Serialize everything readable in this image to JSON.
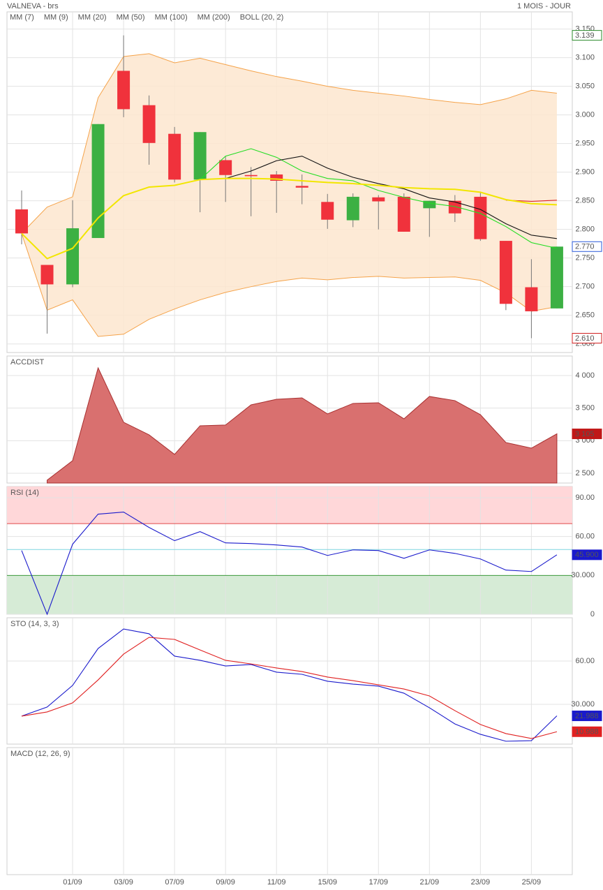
{
  "header": {
    "title": "VALNEVA - brs",
    "period": "1 MOIS - JOUR"
  },
  "chart_data": [
    {
      "type": "candlestick",
      "categories": [
        null,
        null,
        "01/09",
        null,
        "03/09",
        null,
        "07/09",
        null,
        "09/09",
        null,
        "11/09",
        null,
        "15/09",
        null,
        "17/09",
        null,
        "21/09",
        null,
        "23/09",
        null,
        "25/09",
        null
      ],
      "open": [
        2.835,
        2.738,
        2.704,
        2.785,
        3.077,
        3.017,
        2.967,
        2.887,
        2.921,
        2.895,
        2.896,
        2.876,
        2.848,
        2.816,
        2.856,
        2.857,
        2.837,
        2.85,
        2.857,
        2.78,
        2.699,
        2.662
      ],
      "high": [
        2.868,
        2.738,
        2.851,
        2.984,
        3.139,
        3.034,
        2.979,
        2.97,
        2.927,
        2.909,
        2.902,
        2.896,
        2.862,
        2.863,
        2.86,
        2.863,
        2.85,
        2.86,
        2.866,
        2.78,
        2.748,
        2.77
      ],
      "low": [
        2.774,
        2.618,
        2.699,
        2.785,
        2.996,
        2.913,
        2.882,
        2.83,
        2.848,
        2.823,
        2.829,
        2.844,
        2.801,
        2.804,
        2.8,
        2.796,
        2.787,
        2.813,
        2.78,
        2.659,
        2.61,
        2.662
      ],
      "close": [
        2.793,
        2.704,
        2.802,
        2.984,
        3.01,
        2.951,
        2.887,
        2.97,
        2.895,
        2.893,
        2.885,
        2.873,
        2.817,
        2.857,
        2.849,
        2.796,
        2.85,
        2.828,
        2.783,
        2.67,
        2.657,
        2.77
      ],
      "up_color": "#3cb043",
      "down_color": "#f0323c",
      "series": [
        {
          "name": "MM (7)",
          "color": "#22dd22",
          "values": [
            null,
            null,
            null,
            null,
            null,
            null,
            null,
            2.887,
            2.928,
            2.941,
            2.926,
            2.902,
            2.889,
            2.885,
            2.868,
            2.856,
            2.846,
            2.84,
            2.828,
            2.805,
            2.777,
            2.767
          ]
        },
        {
          "name": "MM (9)",
          "color": "#111111",
          "values": [
            null,
            null,
            null,
            null,
            null,
            null,
            null,
            null,
            2.889,
            2.902,
            2.92,
            2.928,
            2.907,
            2.891,
            2.88,
            2.871,
            2.855,
            2.848,
            2.835,
            2.81,
            2.79,
            2.784
          ]
        },
        {
          "name": "MM (20)",
          "color": "#dd2222",
          "values": [
            null,
            null,
            null,
            null,
            null,
            null,
            null,
            null,
            null,
            null,
            null,
            null,
            null,
            null,
            null,
            null,
            null,
            null,
            null,
            2.851,
            2.849,
            2.851
          ]
        },
        {
          "name": "MM (50)",
          "color": "#2222dd",
          "values": [
            null,
            null,
            null,
            null,
            null,
            null,
            null,
            null,
            null,
            null,
            null,
            null,
            null,
            null,
            null,
            null,
            null,
            null,
            null,
            null,
            null,
            null
          ]
        },
        {
          "name": "MM (100)",
          "color": "#dd22dd",
          "values": [
            null,
            null,
            null,
            null,
            null,
            null,
            null,
            null,
            null,
            null,
            null,
            null,
            null,
            null,
            null,
            null,
            null,
            null,
            null,
            null,
            null,
            null
          ]
        },
        {
          "name": "MM (200)",
          "color": "#f2e600",
          "values": [
            2.793,
            2.749,
            2.767,
            2.82,
            2.859,
            2.874,
            2.877,
            2.887,
            2.889,
            2.889,
            2.888,
            2.885,
            2.882,
            2.88,
            2.877,
            2.873,
            2.871,
            2.87,
            2.865,
            2.852,
            2.845,
            2.843
          ]
        }
      ],
      "band": {
        "name": "BOLL (20, 2)",
        "color": "#f5a34a",
        "fill": "#fde6cf",
        "upper": [
          2.793,
          2.839,
          2.857,
          3.03,
          3.102,
          3.107,
          3.091,
          3.099,
          3.088,
          3.077,
          3.067,
          3.059,
          3.05,
          3.043,
          3.038,
          3.033,
          3.027,
          3.022,
          3.018,
          3.028,
          3.043,
          3.038
        ],
        "lower": [
          2.793,
          2.659,
          2.677,
          2.613,
          2.617,
          2.643,
          2.661,
          2.677,
          2.69,
          2.7,
          2.709,
          2.715,
          2.712,
          2.716,
          2.718,
          2.715,
          2.716,
          2.717,
          2.711,
          2.689,
          2.657,
          2.665
        ]
      },
      "ylim": [
        2.585,
        3.18
      ],
      "yticks": [
        {
          "value": 2.6,
          "label": "2.600"
        },
        {
          "value": 2.65,
          "label": "2.650"
        },
        {
          "value": 2.7,
          "label": "2.700"
        },
        {
          "value": 2.75,
          "label": "2.750"
        },
        {
          "value": 2.8,
          "label": "2.800"
        },
        {
          "value": 2.85,
          "label": "2.850"
        },
        {
          "value": 2.9,
          "label": "2.900"
        },
        {
          "value": 2.95,
          "label": "2.950"
        },
        {
          "value": 3.0,
          "label": "3.000"
        },
        {
          "value": 3.05,
          "label": "3.050"
        },
        {
          "value": 3.1,
          "label": "3.100"
        },
        {
          "value": 3.15,
          "label": "3.150"
        }
      ],
      "markers": [
        {
          "value": 3.139,
          "label": "3.139",
          "color": "#2a8a2a",
          "filled": false
        },
        {
          "value": 2.77,
          "label": "2.770",
          "color": "#2a5ad8",
          "filled": false
        },
        {
          "value": 2.61,
          "label": "2.610",
          "color": "#d02020",
          "filled": false
        }
      ]
    },
    {
      "type": "area",
      "title": "ACCDIST",
      "title_color": "#a02020",
      "color": "#d9706f",
      "line_color": "#a83030",
      "values": [
        null,
        2394,
        2694,
        4118,
        3283,
        3090,
        2790,
        3229,
        3240,
        3550,
        3636,
        3657,
        3411,
        3572,
        3582,
        3336,
        3679,
        3615,
        3400,
        2972,
        2886,
        3105
      ],
      "ylim": [
        2350,
        4300
      ],
      "yticks": [
        {
          "value": 2500,
          "label": "2 500"
        },
        {
          "value": 3000,
          "label": "3 000"
        },
        {
          "value": 3500,
          "label": "3 500"
        },
        {
          "value": 4000,
          "label": "4 000"
        }
      ],
      "markers": [
        {
          "value": 3105,
          "label": "3 105",
          "color": "#c01818",
          "filled": true
        }
      ]
    },
    {
      "type": "line",
      "title": "RSI (14)",
      "title_color": "#1a1aa0",
      "series": [
        {
          "color": "#1a1acc",
          "values": [
            49.2,
            0,
            54.1,
            77.3,
            78.9,
            67.0,
            56.8,
            63.8,
            55.1,
            54.6,
            53.5,
            51.9,
            45.4,
            49.7,
            49.2,
            43.2,
            49.7,
            47.0,
            42.7,
            34.1,
            33.0,
            45.9
          ]
        }
      ],
      "overbought": 70,
      "oversold": 30,
      "midline": 50,
      "zone_colors": [
        "#ffd7d9",
        "#d6ebd6"
      ],
      "level_colors": [
        "#e04848",
        "#3c9a3c",
        "#7fd6e0"
      ],
      "ylim": [
        0,
        98.6
      ],
      "yticks": [
        0,
        {
          "value": 30,
          "label": "30.000"
        },
        {
          "value": 60,
          "label": "60.00"
        },
        {
          "value": 90,
          "label": "90.00"
        }
      ],
      "markers": [
        {
          "value": 45.9,
          "label": "45.900",
          "color": "#1a1acc",
          "filled": true
        }
      ]
    },
    {
      "type": "line",
      "title": "STO (14, 3, 3)",
      "title_color": "#1a1acc",
      "series": [
        {
          "color": "#1a1acc",
          "values": [
            21.8,
            28.1,
            43.1,
            68.7,
            82.2,
            78.9,
            63.4,
            60.5,
            56.6,
            57.6,
            52.3,
            50.8,
            46.0,
            44.0,
            42.6,
            37.7,
            27.6,
            16.4,
            9.2,
            4.4,
            4.8,
            21.988
          ]
        },
        {
          "color": "#e02020",
          "values": [
            21.8,
            24.7,
            31.0,
            46.9,
            64.8,
            76.4,
            75.0,
            67.7,
            60.5,
            58.0,
            55.2,
            52.7,
            48.9,
            46.4,
            43.5,
            40.6,
            35.8,
            25.6,
            16.0,
            9.7,
            6.3,
            10.988
          ]
        }
      ],
      "ylim": [
        2.4,
        90
      ],
      "yticks": [
        {
          "value": 30,
          "label": "30.000"
        },
        {
          "value": 60,
          "label": "60.00"
        }
      ],
      "markers": [
        {
          "value": 21.988,
          "label": "21.988",
          "color": "#1a1acc",
          "filled": true
        },
        {
          "value": 10.988,
          "label": "10.988",
          "color": "#e02020",
          "filled": true
        }
      ]
    },
    {
      "type": "line",
      "title": "MACD (12, 26, 9)",
      "title_color": "#1a1aa0"
    }
  ]
}
